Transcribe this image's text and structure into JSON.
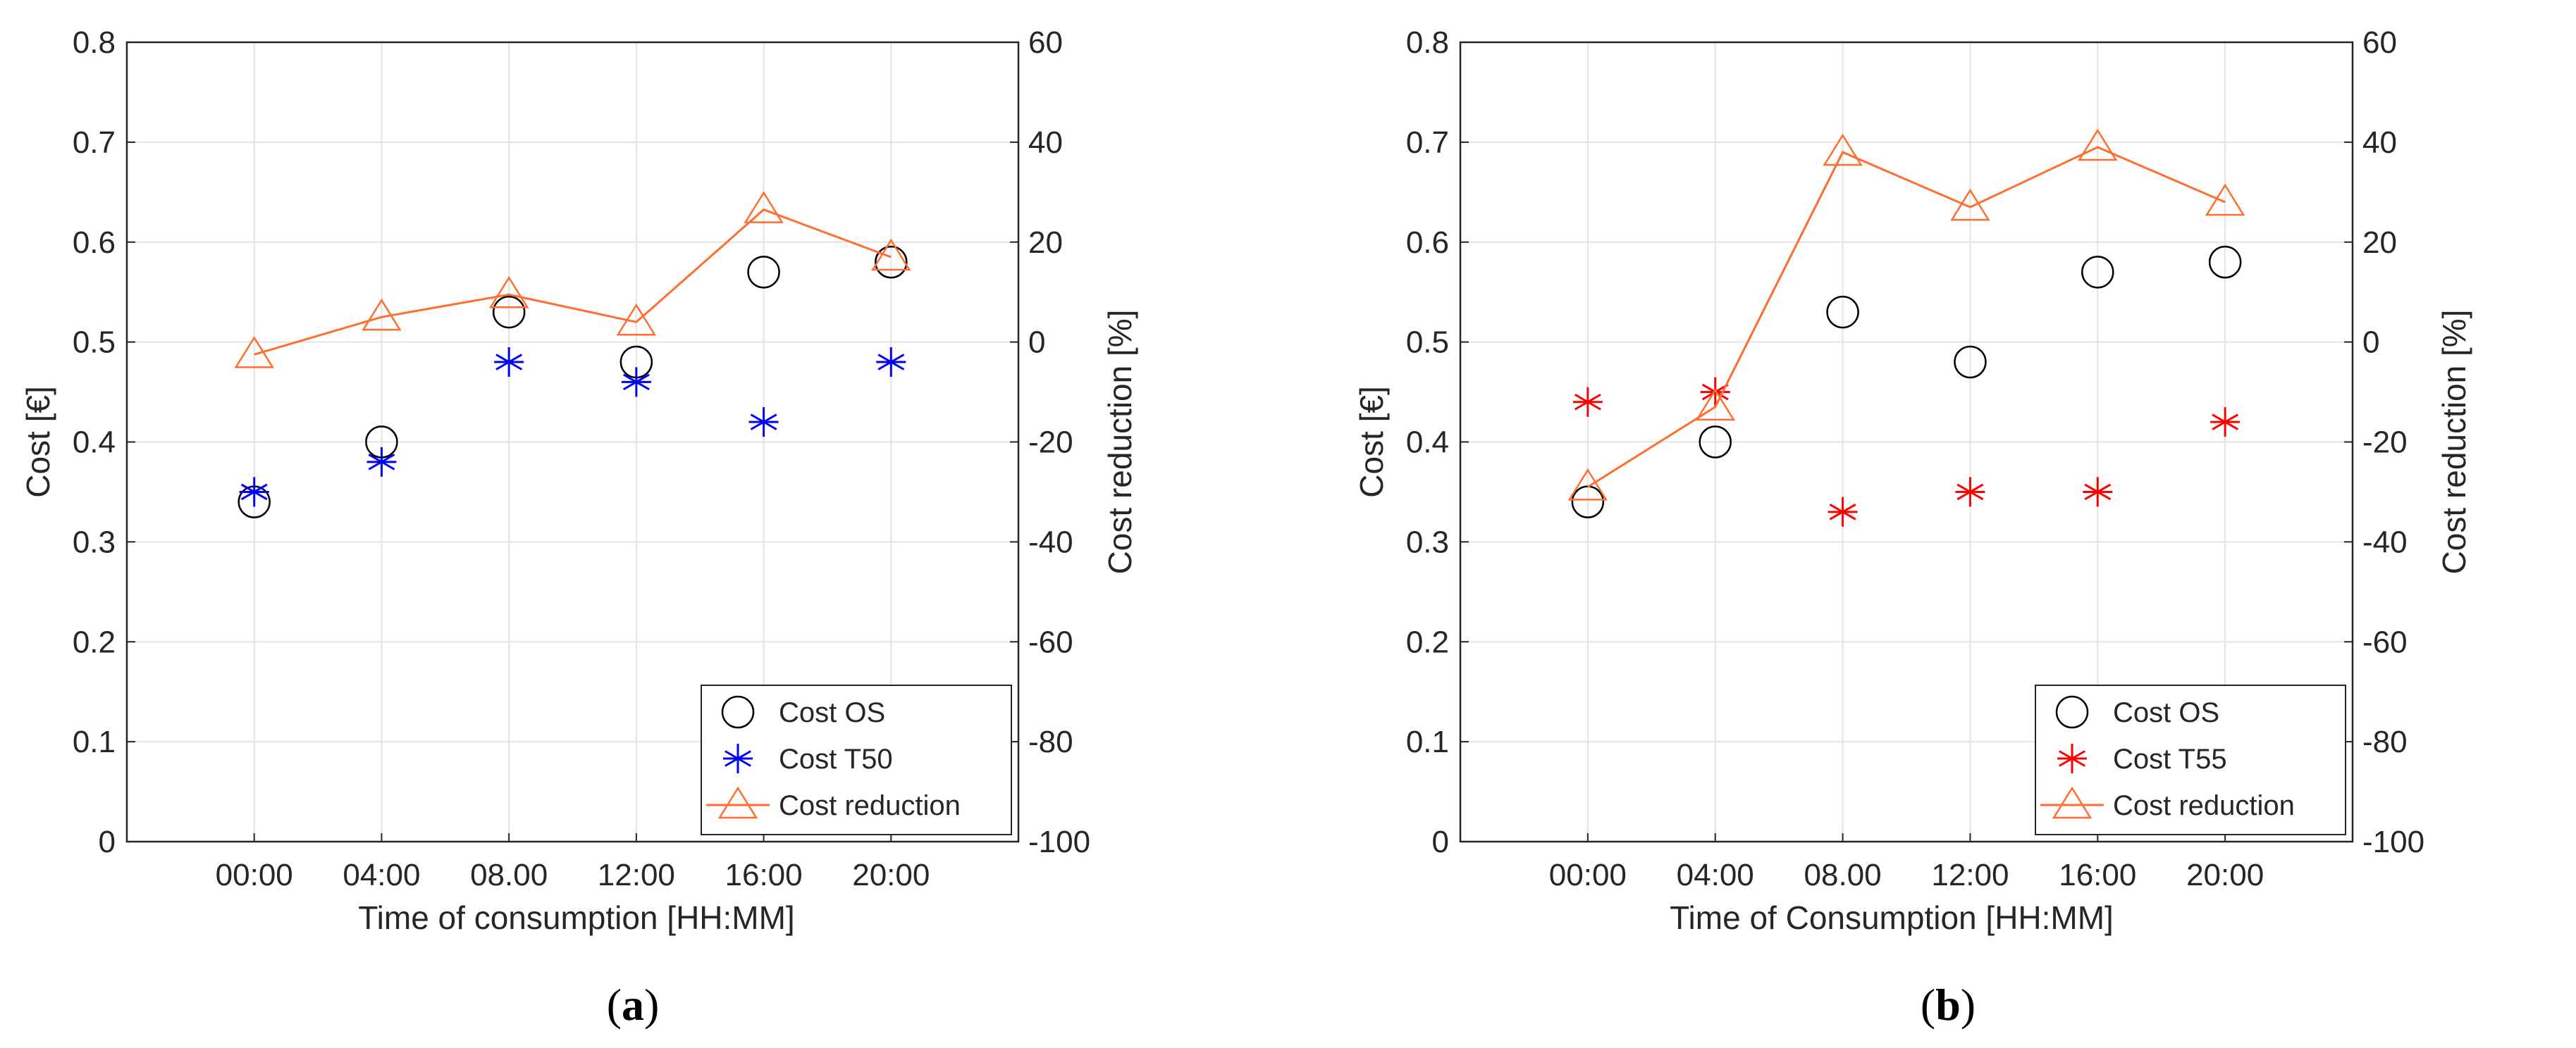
{
  "chart_data": [
    {
      "type": "scatter",
      "panel_label": "(a)",
      "panel_letter": "a",
      "xlabel": "Time of consumption [HH:MM]",
      "ylabel": "Cost [€]",
      "y2label": "Cost reduction [%]",
      "categories": [
        "00:00",
        "04:00",
        "08.00",
        "12:00",
        "16:00",
        "20:00"
      ],
      "ylim": [
        0,
        0.8
      ],
      "y2lim": [
        -100,
        60
      ],
      "yticks": [
        "0",
        "0.1",
        "0.2",
        "0.3",
        "0.4",
        "0.5",
        "0.6",
        "0.7",
        "0.8"
      ],
      "y2ticks": [
        "-100",
        "-80",
        "-60",
        "-40",
        "-20",
        "0",
        "20",
        "40",
        "60"
      ],
      "grid": true,
      "legend_position": "bottom-right",
      "series": [
        {
          "name": "Cost OS",
          "axis": "left",
          "marker": "circle",
          "color": "#000000",
          "values": [
            0.34,
            0.4,
            0.53,
            0.48,
            0.57,
            0.58
          ]
        },
        {
          "name": "Cost T50",
          "axis": "left",
          "marker": "asterisk",
          "color": "#0000ff",
          "values": [
            0.35,
            0.38,
            0.48,
            0.46,
            0.42,
            0.48
          ]
        },
        {
          "name": "Cost reduction",
          "axis": "right",
          "marker": "triangle-line",
          "color": "#ff6e2e",
          "values": [
            -2.5,
            5,
            9.5,
            4,
            26.5,
            17
          ]
        }
      ]
    },
    {
      "type": "scatter",
      "panel_label": "(b)",
      "panel_letter": "b",
      "xlabel": "Time of Consumption [HH:MM]",
      "ylabel": "Cost [€]",
      "y2label": "Cost reduction [%]",
      "categories": [
        "00:00",
        "04:00",
        "08.00",
        "12:00",
        "16:00",
        "20:00"
      ],
      "ylim": [
        0,
        0.8
      ],
      "y2lim": [
        -100,
        60
      ],
      "yticks": [
        "0",
        "0.1",
        "0.2",
        "0.3",
        "0.4",
        "0.5",
        "0.6",
        "0.7",
        "0.8"
      ],
      "y2ticks": [
        "-100",
        "-80",
        "-60",
        "-40",
        "-20",
        "0",
        "20",
        "40",
        "60"
      ],
      "grid": true,
      "legend_position": "bottom-right",
      "series": [
        {
          "name": "Cost OS",
          "axis": "left",
          "marker": "circle",
          "color": "#000000",
          "values": [
            0.34,
            0.4,
            0.53,
            0.48,
            0.57,
            0.58
          ]
        },
        {
          "name": "Cost T55",
          "axis": "left",
          "marker": "asterisk",
          "color": "#ff0000",
          "values": [
            0.44,
            0.45,
            0.33,
            0.35,
            0.35,
            0.42
          ]
        },
        {
          "name": "Cost reduction",
          "axis": "right",
          "marker": "triangle-line",
          "color": "#ff6e2e",
          "values": [
            -29,
            -13,
            38,
            27,
            39,
            28
          ]
        }
      ]
    }
  ]
}
